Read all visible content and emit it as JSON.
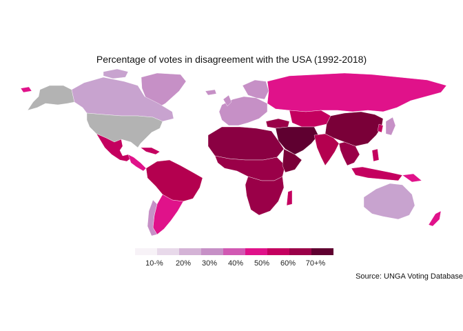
{
  "title": "Percentage of votes in disagreement with the USA (1992-2018)",
  "source": "Source: UNGA Voting Database",
  "legend": {
    "labels": [
      "10-%",
      "20%",
      "30%",
      "40%",
      "50%",
      "60%",
      "70+%"
    ],
    "colors": [
      "#f7f2f7",
      "#e8d9ea",
      "#d4b3d6",
      "#c690c6",
      "#d159b3",
      "#e0128a",
      "#c4005f",
      "#9a0048",
      "#5f0030"
    ]
  },
  "colors": {
    "no_data": "#b3b3b3",
    "ocean": "#ffffff"
  }
}
